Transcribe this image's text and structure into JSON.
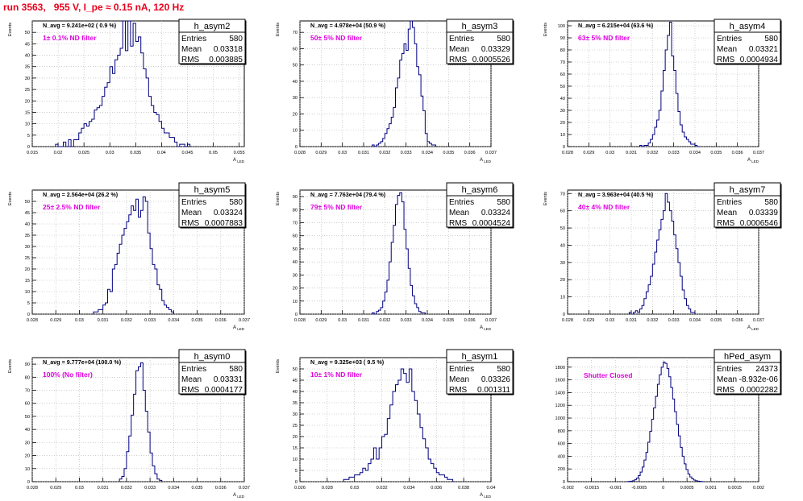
{
  "page": {
    "title": "run 3563,   955 V, I_pe ≈ 0.15 nA, 120 Hz"
  },
  "chart_data": [
    {
      "type": "histogram",
      "name": "h_asym2",
      "stats": {
        "Entries": "580",
        "Mean": "0.03318",
        "RMS": "0.003885"
      },
      "navg": "N_avg = 9.241e+02 ( 0.9 %)",
      "filter": "1± 0.1% ND filter",
      "xlabel": "A_LED",
      "ylabel": "Events",
      "xlim": [
        0.015,
        0.056
      ],
      "ylim": [
        0,
        55
      ],
      "xticks": [
        "0.015",
        "0.02",
        "0.025",
        "0.03",
        "0.035",
        "0.04",
        "0.045",
        "0.05",
        "0.055"
      ],
      "yticks": [
        "0",
        "5",
        "10",
        "15",
        "20",
        "25",
        "30",
        "35",
        "40",
        "45",
        "50"
      ],
      "bin_start": 0.0195,
      "bin_width": 0.0005,
      "counts": [
        1,
        0,
        0,
        2,
        0,
        3,
        0,
        3,
        3,
        6,
        8,
        10,
        9,
        11,
        12,
        16,
        17,
        18,
        22,
        26,
        28,
        35,
        32,
        38,
        40,
        43,
        55,
        42,
        55,
        44,
        54,
        46,
        48,
        41,
        34,
        30,
        22,
        18,
        15,
        14,
        11,
        8,
        6,
        6,
        4,
        4,
        2,
        0,
        1,
        1,
        0,
        1
      ]
    },
    {
      "type": "histogram",
      "name": "h_asym3",
      "stats": {
        "Entries": "580",
        "Mean": "0.03329",
        "RMS": "0.0005526"
      },
      "navg": "N_avg = 4.978e+04 (50.9 %)",
      "filter": "50± 5% ND filter",
      "xlabel": "A_LED",
      "ylabel": "Events",
      "xlim": [
        0.028,
        0.037
      ],
      "ylim": [
        0,
        77
      ],
      "xticks": [
        "0.028",
        "0.029",
        "0.03",
        "0.031",
        "0.032",
        "0.033",
        "0.034",
        "0.035",
        "0.036",
        "0.037"
      ],
      "yticks": [
        "0",
        "10",
        "20",
        "30",
        "40",
        "50",
        "60",
        "70"
      ],
      "bin_start": 0.0314,
      "bin_width": 0.0001,
      "counts": [
        1,
        0,
        1,
        2,
        3,
        5,
        8,
        11,
        14,
        18,
        24,
        36,
        42,
        53,
        57,
        63,
        59,
        72,
        77,
        73,
        63,
        49,
        44,
        31,
        22,
        8,
        3,
        2,
        1,
        1
      ]
    },
    {
      "type": "histogram",
      "name": "h_asym4",
      "stats": {
        "Entries": "580",
        "Mean": "0.03321",
        "RMS": "0.0004934"
      },
      "navg": "N_avg = 6.215e+04 (63.6 %)",
      "filter": "63± 5% ND filter",
      "xlabel": "A_LED",
      "ylabel": "Events",
      "xlim": [
        0.028,
        0.037
      ],
      "ylim": [
        0,
        104
      ],
      "xticks": [
        "0.028",
        "0.029",
        "0.03",
        "0.031",
        "0.032",
        "0.033",
        "0.034",
        "0.035",
        "0.036",
        "0.037"
      ],
      "yticks": [
        "0",
        "10",
        "20",
        "30",
        "40",
        "50",
        "60",
        "70",
        "80",
        "90",
        "100"
      ],
      "bin_start": 0.0314,
      "bin_width": 0.0001,
      "counts": [
        1,
        0,
        1,
        1,
        3,
        6,
        10,
        16,
        22,
        30,
        46,
        63,
        80,
        92,
        103,
        75,
        63,
        44,
        29,
        18,
        12,
        8,
        6,
        4,
        2,
        2,
        1,
        0
      ]
    },
    {
      "type": "histogram",
      "name": "h_asym5",
      "stats": {
        "Entries": "580",
        "Mean": "0.03324",
        "RMS": "0.0007883"
      },
      "navg": "N_avg = 2.564e+04 (26.2 %)",
      "filter": "25± 2.5% ND filter",
      "xlabel": "A_LED",
      "ylabel": "Events",
      "xlim": [
        0.028,
        0.037
      ],
      "ylim": [
        0,
        55
      ],
      "xticks": [
        "0.028",
        "0.029",
        "0.03",
        "0.031",
        "0.032",
        "0.033",
        "0.034",
        "0.035",
        "0.036",
        "0.037"
      ],
      "yticks": [
        "0",
        "5",
        "10",
        "15",
        "20",
        "25",
        "30",
        "35",
        "40",
        "45",
        "50"
      ],
      "bin_start": 0.0306,
      "bin_width": 0.0001,
      "counts": [
        1,
        1,
        2,
        2,
        4,
        5,
        11,
        10,
        20,
        22,
        27,
        31,
        35,
        38,
        41,
        44,
        48,
        46,
        51,
        43,
        46,
        52,
        50,
        36,
        29,
        22,
        20,
        13,
        11,
        6,
        4,
        3,
        2,
        1
      ]
    },
    {
      "type": "histogram",
      "name": "h_asym6",
      "stats": {
        "Entries": "580",
        "Mean": "0.03324",
        "RMS": "0.0004524"
      },
      "navg": "N_avg = 7.763e+04 (79.4 %)",
      "filter": "79± 5% ND filter",
      "xlabel": "A_LED",
      "ylabel": "Events",
      "xlim": [
        0.028,
        0.037
      ],
      "ylim": [
        0,
        95
      ],
      "xticks": [
        "0.028",
        "0.029",
        "0.03",
        "0.031",
        "0.032",
        "0.033",
        "0.034",
        "0.035",
        "0.036",
        "0.037"
      ],
      "yticks": [
        "0",
        "10",
        "20",
        "30",
        "40",
        "50",
        "60",
        "70",
        "80",
        "90"
      ],
      "bin_start": 0.0314,
      "bin_width": 0.0001,
      "counts": [
        1,
        0,
        2,
        3,
        5,
        10,
        17,
        26,
        40,
        55,
        68,
        84,
        91,
        93,
        86,
        65,
        50,
        35,
        22,
        14,
        8,
        5,
        2,
        1,
        1
      ]
    },
    {
      "type": "histogram",
      "name": "h_asym7",
      "stats": {
        "Entries": "580",
        "Mean": "0.03339",
        "RMS": "0.0006546"
      },
      "navg": "N_avg = 3.963e+04 (40.5 %)",
      "filter": "40± 4% ND filter",
      "xlabel": "A_LED",
      "ylabel": "Events",
      "xlim": [
        0.028,
        0.037
      ],
      "ylim": [
        0,
        72
      ],
      "xticks": [
        "0.028",
        "0.029",
        "0.03",
        "0.031",
        "0.032",
        "0.033",
        "0.034",
        "0.035",
        "0.036",
        "0.037"
      ],
      "yticks": [
        "0",
        "10",
        "20",
        "30",
        "40",
        "50",
        "60",
        "70"
      ],
      "bin_start": 0.0309,
      "bin_width": 0.0001,
      "counts": [
        1,
        0,
        1,
        2,
        1,
        3,
        5,
        9,
        13,
        17,
        22,
        29,
        36,
        43,
        49,
        55,
        60,
        70,
        65,
        60,
        54,
        46,
        38,
        30,
        22,
        14,
        9,
        5,
        3,
        1,
        1
      ]
    },
    {
      "type": "histogram",
      "name": "h_asym0",
      "stats": {
        "Entries": "580",
        "Mean": "0.03331",
        "RMS": "0.0004177"
      },
      "navg": "N_avg = 9.777e+04 (100.0 %)",
      "filter": "100% (No filter)",
      "xlabel": "A_LED",
      "ylabel": "Events",
      "xlim": [
        0.028,
        0.037
      ],
      "ylim": [
        0,
        95
      ],
      "xticks": [
        "0.028",
        "0.029",
        "0.03",
        "0.031",
        "0.032",
        "0.033",
        "0.034",
        "0.035",
        "0.036",
        "0.037"
      ],
      "yticks": [
        "0",
        "10",
        "20",
        "30",
        "40",
        "50",
        "60",
        "70",
        "80",
        "90"
      ],
      "bin_start": 0.0317,
      "bin_width": 0.0001,
      "counts": [
        2,
        4,
        10,
        23,
        35,
        51,
        67,
        85,
        88,
        91,
        70,
        54,
        38,
        22,
        12,
        6,
        2,
        1
      ]
    },
    {
      "type": "histogram",
      "name": "h_asym1",
      "stats": {
        "Entries": "580",
        "Mean": "0.03326",
        "RMS": "0.001311"
      },
      "navg": "N_avg = 9.325e+03 ( 9.5 %)",
      "filter": "10± 1% ND filter",
      "xlabel": "A_LED",
      "ylabel": "Events",
      "xlim": [
        0.026,
        0.04
      ],
      "ylim": [
        0,
        55
      ],
      "xticks": [
        "0.026",
        "0.028",
        "0.03",
        "0.032",
        "0.034",
        "0.036",
        "0.038",
        "0.04"
      ],
      "yticks": [
        "0",
        "5",
        "10",
        "15",
        "20",
        "25",
        "30",
        "35",
        "40",
        "45",
        "50"
      ],
      "bin_start": 0.0292,
      "bin_width": 0.0002,
      "counts": [
        1,
        1,
        2,
        2,
        3,
        3,
        4,
        6,
        5,
        8,
        10,
        15,
        10,
        15,
        20,
        21,
        28,
        34,
        40,
        43,
        45,
        50,
        48,
        44,
        50,
        40,
        36,
        30,
        24,
        19,
        15,
        10,
        8,
        6,
        4,
        3,
        3,
        2,
        1,
        1
      ]
    },
    {
      "type": "histogram",
      "name": "hPed_asym",
      "stats": {
        "Entries": "24373",
        "Mean": "-8.932e-06",
        "RMS": "0.0002282"
      },
      "navg": "",
      "filter": "Shutter Closed",
      "xlabel": "",
      "ylabel": "",
      "xlim": [
        -0.002,
        0.002
      ],
      "ylim": [
        0,
        1950
      ],
      "xticks": [
        "-0.002",
        "-0.0015",
        "-0.001",
        "-0.0005",
        "0",
        "0.0005",
        "0.001",
        "0.0015",
        "0.002"
      ],
      "yticks": [
        "0",
        "200",
        "400",
        "600",
        "800",
        "1000",
        "1200",
        "1400",
        "1600",
        "1800"
      ],
      "bin_start": -0.00076,
      "bin_width": 4e-05,
      "counts": [
        2,
        4,
        8,
        15,
        30,
        55,
        95,
        150,
        230,
        340,
        460,
        620,
        790,
        980,
        1160,
        1340,
        1530,
        1680,
        1800,
        1880,
        1860,
        1780,
        1650,
        1480,
        1300,
        1100,
        900,
        720,
        540,
        400,
        280,
        190,
        120,
        75,
        45,
        25,
        14,
        8,
        4,
        2
      ]
    }
  ]
}
